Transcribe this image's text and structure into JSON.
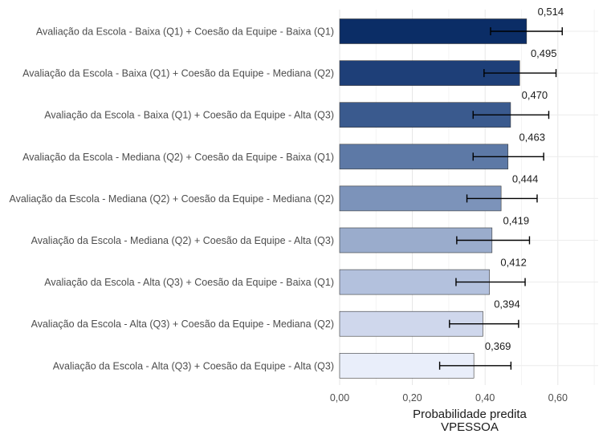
{
  "chart_data": {
    "type": "bar",
    "orientation": "horizontal",
    "categories": [
      "Avaliação da Escola - Baixa (Q1) + Coesão da Equipe - Baixa (Q1)",
      "Avaliação da Escola - Baixa (Q1) + Coesão da Equipe - Mediana (Q2)",
      "Avaliação da Escola - Baixa (Q1) + Coesão da Equipe - Alta (Q3)",
      "Avaliação da Escola - Mediana (Q2) + Coesão da Equipe - Baixa (Q1)",
      "Avaliação da Escola - Mediana (Q2) + Coesão da Equipe - Mediana (Q2)",
      "Avaliação da Escola - Mediana (Q2) + Coesão da Equipe - Alta (Q3)",
      "Avaliação da Escola - Alta (Q3) + Coesão da Equipe -  Baixa (Q1)",
      "Avaliação da Escola - Alta (Q3) + Coesão da Equipe -  Mediana (Q2)",
      "Avaliação da Escola - Alta (Q3) + Coesão da Equipe - Alta (Q3)"
    ],
    "values": [
      0.514,
      0.495,
      0.47,
      0.463,
      0.444,
      0.419,
      0.412,
      0.394,
      0.369
    ],
    "value_labels": [
      "0,514",
      "0,495",
      "0,470",
      "0,463",
      "0,444",
      "0,419",
      "0,412",
      "0,394",
      "0,369"
    ],
    "ci_lower": [
      0.415,
      0.397,
      0.367,
      0.367,
      0.35,
      0.322,
      0.32,
      0.302,
      0.275
    ],
    "ci_upper": [
      0.612,
      0.595,
      0.575,
      0.561,
      0.543,
      0.522,
      0.51,
      0.492,
      0.471
    ],
    "colors": [
      "#0b2d66",
      "#1e3f78",
      "#3a5a8e",
      "#5d79a6",
      "#7c93ba",
      "#9aaccc",
      "#b3c1dd",
      "#cfd7ec",
      "#e9eefa"
    ],
    "xlim": [
      0,
      0.72
    ],
    "xticks": [
      0,
      0.2,
      0.4,
      0.6
    ],
    "xtick_labels": [
      "0,00",
      "0,20",
      "0,40",
      "0,60"
    ],
    "xlabel": "Probabilidade predita\nVPESSOA",
    "ylabel": "",
    "title": "",
    "grid": true
  }
}
